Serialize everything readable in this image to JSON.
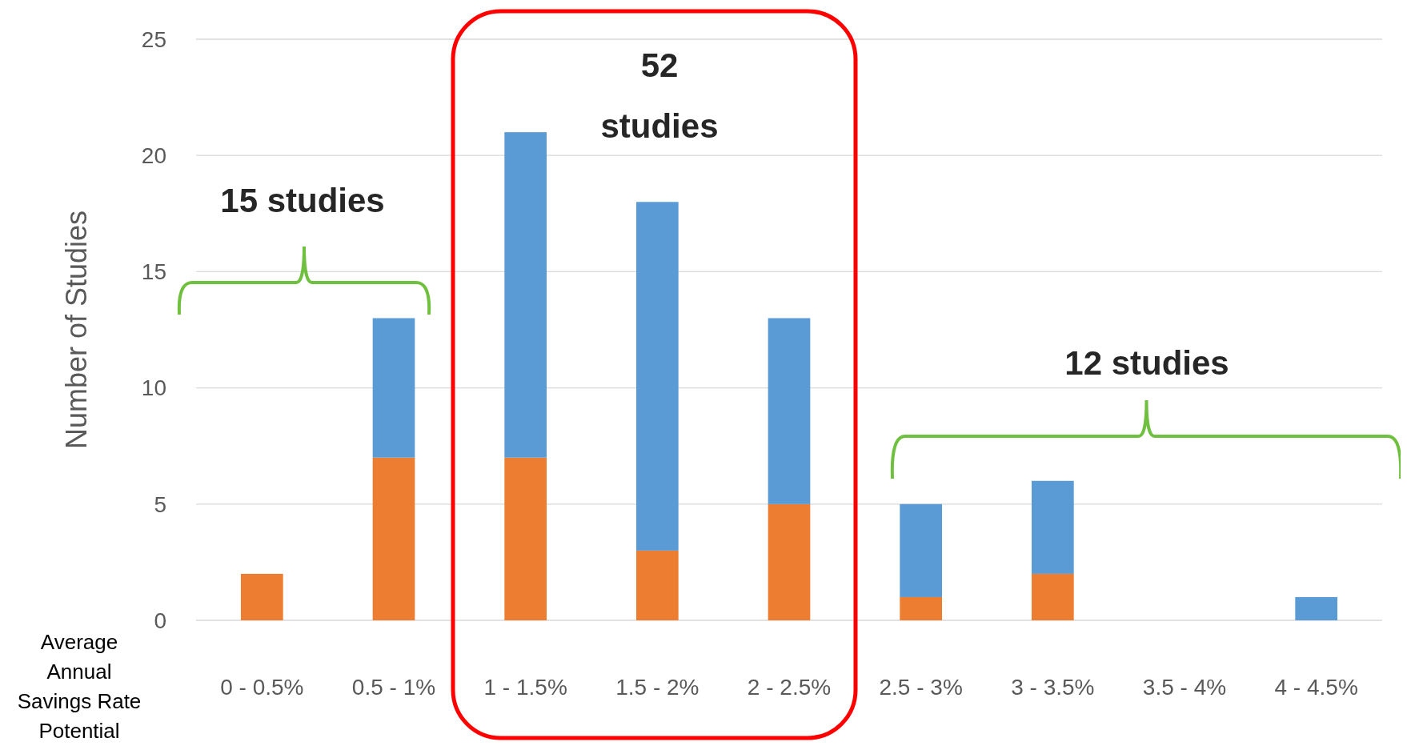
{
  "chart_data": {
    "type": "bar",
    "stacked": true,
    "xlabel": "Average Annual Savings Rate Potential",
    "ylabel": "Number of Studies",
    "categories": [
      "0 - 0.5%",
      "0.5 - 1%",
      "1 - 1.5%",
      "1.5 - 2%",
      "2 - 2.5%",
      "2.5 - 3%",
      "3 - 3.5%",
      "3.5 - 4%",
      "4 - 4.5%"
    ],
    "series": [
      {
        "color": "#ed7d31",
        "values": [
          2,
          7,
          7,
          3,
          5,
          1,
          2,
          0,
          0
        ]
      },
      {
        "color": "#5b9bd5",
        "values": [
          0,
          6,
          14,
          15,
          8,
          4,
          4,
          0,
          1
        ]
      }
    ],
    "ylim": [
      0,
      25
    ],
    "yticks": [
      0,
      5,
      10,
      15,
      20,
      25
    ],
    "grid": "y",
    "annotations": [
      "15 studies",
      "52 studies",
      "12 studies"
    ]
  }
}
